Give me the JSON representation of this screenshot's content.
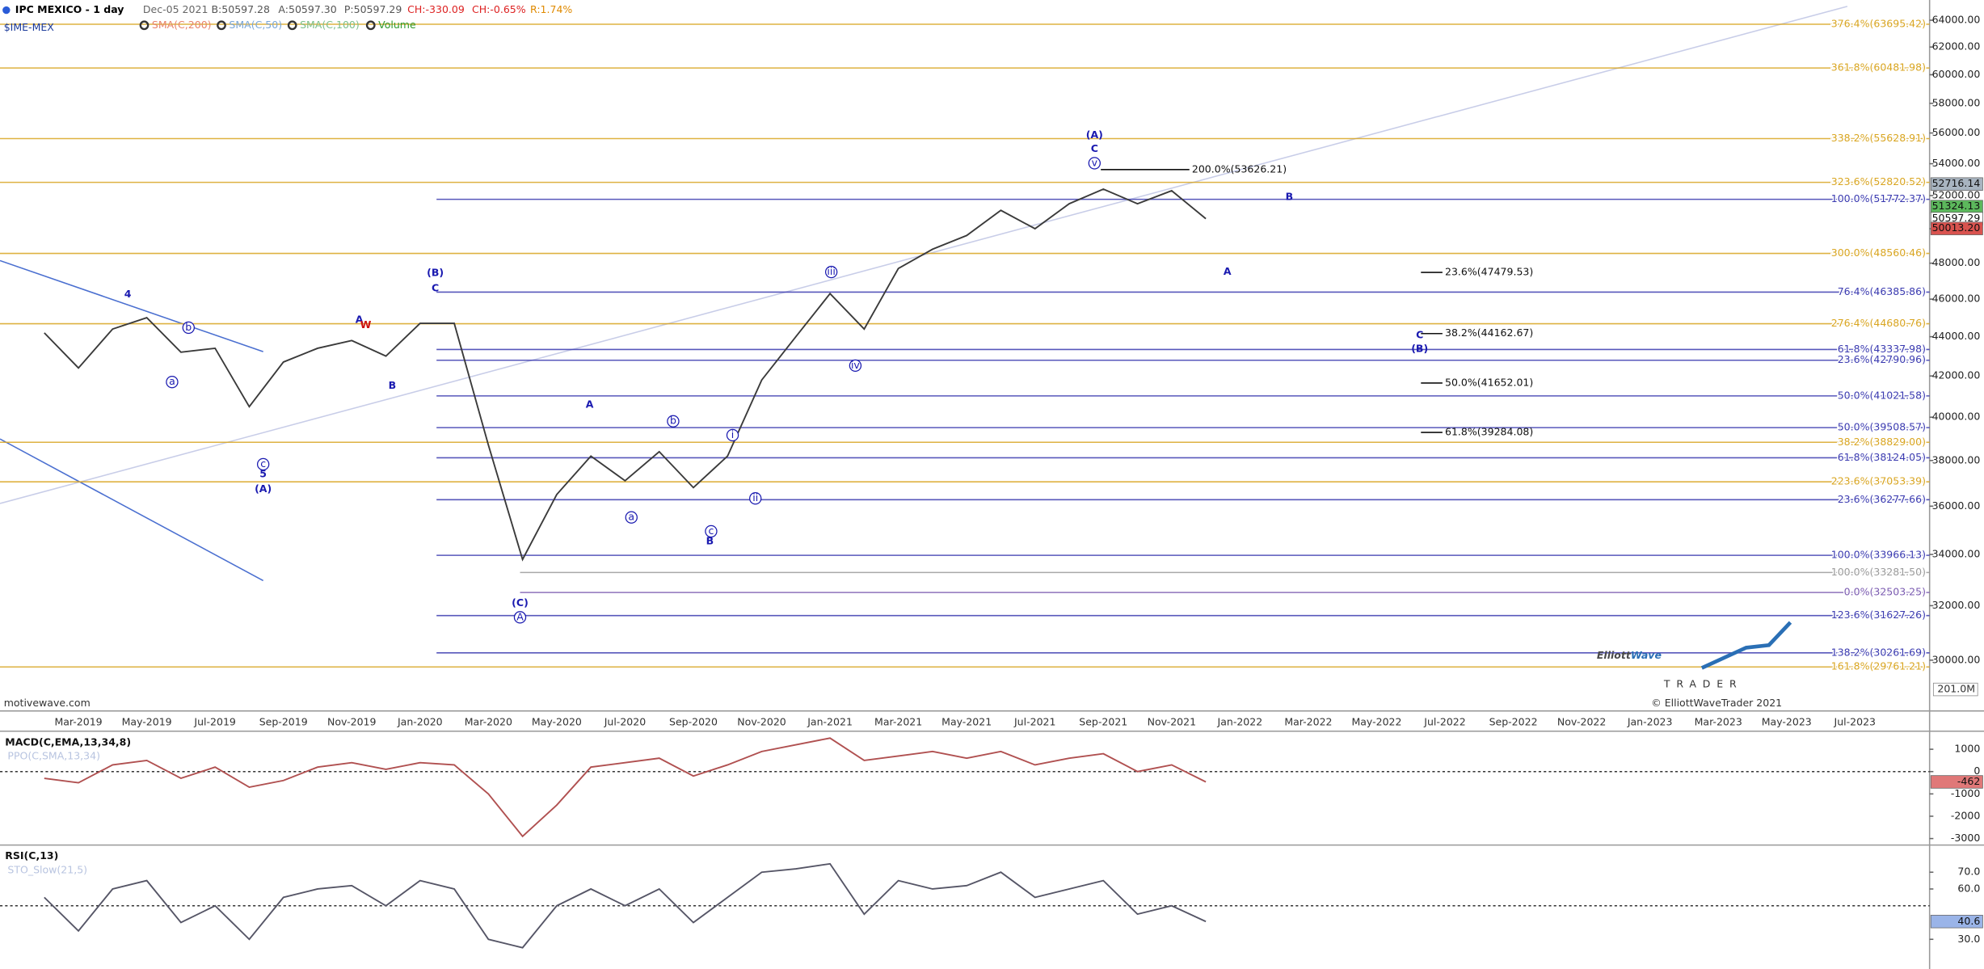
{
  "header": {
    "title": "IPC MEXICO - 1 day",
    "date": "Dec-05 2021",
    "bid": "B:50597.28",
    "ask": "A:50597.30",
    "price": "P:50597.29",
    "change": "CH:-330.09",
    "change_pct": "CH:-0.65%",
    "range": "R:1.74%",
    "ticker": "$IME-MEX",
    "indicators": [
      {
        "name": "SMA(C,200)",
        "color": "#e8836b"
      },
      {
        "name": "SMA(C,50)",
        "color": "#7aa7d8"
      },
      {
        "name": "SMA(C,100)",
        "color": "#7cc08a"
      },
      {
        "name": "Volume",
        "color": "#2e9a2e"
      }
    ]
  },
  "chart_data": [
    {
      "type": "line",
      "categories": [
        null,
        "Mar-2019",
        null,
        "May-2019",
        null,
        "Jul-2019",
        null,
        "Sep-2019",
        null,
        "Nov-2019",
        null,
        "Jan-2020",
        null,
        "Mar-2020",
        null,
        "May-2020",
        null,
        "Jul-2020",
        null,
        "Sep-2020",
        null,
        "Nov-2020",
        null,
        "Jan-2021",
        null,
        "Mar-2021",
        null,
        "May-2021",
        null,
        "Jul-2021",
        null,
        "Sep-2021",
        null,
        "Nov-2021",
        null,
        "Jan-2022",
        null,
        "Mar-2022",
        null,
        "May-2022",
        null,
        "Jul-2022",
        null,
        "Sep-2022",
        null,
        "Nov-2022",
        null,
        "Jan-2023",
        null,
        "Mar-2023",
        null,
        "May-2023",
        null,
        "Jul-2023",
        null
      ],
      "values": [
        44200,
        42400,
        44400,
        45000,
        43200,
        43400,
        40500,
        42700,
        43400,
        43800,
        43000,
        44700,
        44700,
        38700,
        33800,
        36500,
        38200,
        37100,
        38400,
        36800,
        38200,
        41800,
        44000,
        46300,
        44400,
        47700,
        48800,
        49600,
        51100,
        50000,
        51500,
        52400,
        51500,
        52300,
        50597,
        null,
        null,
        null,
        null,
        null,
        null,
        null,
        null,
        null,
        null,
        null,
        null,
        null,
        null,
        null,
        null,
        null,
        null,
        null,
        null
      ],
      "color": "#3a3a3a",
      "log_scale": true,
      "ylim": [
        28250,
        65550
      ],
      "yticks": [
        {
          "value": 30000,
          "label": "30000.00"
        },
        {
          "value": 32000,
          "label": "32000.00"
        },
        {
          "value": 34000,
          "label": "34000.00"
        },
        {
          "value": 36000,
          "label": "36000.00"
        },
        {
          "value": 38000,
          "label": "38000.00"
        },
        {
          "value": 40000,
          "label": "40000.00"
        },
        {
          "value": 42000,
          "label": "42000.00"
        },
        {
          "value": 44000,
          "label": "44000.00"
        },
        {
          "value": 46000,
          "label": "46000.00"
        },
        {
          "value": 48000,
          "label": "48000.00"
        },
        {
          "value": 50000,
          "label": "50000.00"
        },
        {
          "value": 52000,
          "label": "52000.00"
        },
        {
          "value": 54000,
          "label": "54000.00"
        },
        {
          "value": 56000,
          "label": "56000.00"
        },
        {
          "value": 58000,
          "label": "58000.00"
        },
        {
          "value": 60000,
          "label": "60000.00"
        },
        {
          "value": 62000,
          "label": "62000.00"
        },
        {
          "value": 64000,
          "label": "64000.00"
        }
      ],
      "levels": [
        {
          "label": "376.4%(63695.42)",
          "value": 63695.42,
          "color": "#d9a520"
        },
        {
          "label": "361.8%(60481.98)",
          "value": 60481.98,
          "color": "#d9a520"
        },
        {
          "label": "338.2%(55628.91)",
          "value": 55628.91,
          "color": "#d9a520"
        },
        {
          "label": "323.6%(52820.52)",
          "value": 52820.52,
          "color": "#d9a520"
        },
        {
          "label": "100.0%(51772.37)",
          "value": 51772.37,
          "color": "#3a3ab0"
        },
        {
          "label": "300.0%(48560.46)",
          "value": 48560.46,
          "color": "#d9a520"
        },
        {
          "label": "76.4%(46385.86)",
          "value": 46385.86,
          "color": "#3a3ab0"
        },
        {
          "label": "276.4%(44680.76)",
          "value": 44680.76,
          "color": "#d9a520"
        },
        {
          "label": "61.8%(43337.98)",
          "value": 43337.98,
          "color": "#3a3ab0"
        },
        {
          "label": "23.6%(42790.96)",
          "value": 42790.96,
          "color": "#3a3ab0"
        },
        {
          "label": "50.0%(41021.58)",
          "value": 41021.58,
          "color": "#3a3ab0"
        },
        {
          "label": "50.0%(39508.57)",
          "value": 39508.57,
          "color": "#3a3ab0"
        },
        {
          "label": "38.2%(38829.00)",
          "value": 38829,
          "color": "#d9a520"
        },
        {
          "label": "61.8%(38124.05)",
          "value": 38124.05,
          "color": "#3a3ab0"
        },
        {
          "label": "223.6%(37053.39)",
          "value": 37053.39,
          "color": "#d9a520"
        },
        {
          "label": "23.6%(36277.66)",
          "value": 36277.66,
          "color": "#3a3ab0"
        },
        {
          "label": "100.0%(33966.13)",
          "value": 33966.13,
          "color": "#3a3ab0"
        },
        {
          "label": "100.0%(33281.50)",
          "value": 33281.5,
          "color": "#9a9a9a"
        },
        {
          "label": "0.0%(32503.25)",
          "value": 32503.25,
          "color": "#7a5ab0"
        },
        {
          "label": "123.6%(31627.26)",
          "value": 31627.26,
          "color": "#3a3ab0"
        },
        {
          "label": "138.2%(30261.69)",
          "value": 30261.69,
          "color": "#3a3ab0"
        },
        {
          "label": "161.8%(29761.21)",
          "value": 29761.21,
          "color": "#d9a520"
        }
      ],
      "projections": [
        {
          "label": "200.0%(53626.21)",
          "value": 53626.21
        },
        {
          "label": "23.6%(47479.53)",
          "value": 47479.53
        },
        {
          "label": "38.2%(44162.67)",
          "value": 44162.67
        },
        {
          "label": "50.0%(41652.01)",
          "value": 41652.01
        },
        {
          "label": "61.8%(39284.08)",
          "value": 39284.08
        }
      ],
      "waves": [
        {
          "text": "(A)",
          "color": "#1a1ab0"
        },
        {
          "text": "C",
          "color": "#1a1ab0"
        },
        {
          "text": "v",
          "color": "#1a1ab0"
        },
        {
          "text": "B",
          "color": "#1a1ab0"
        },
        {
          "text": "A",
          "color": "#1a1ab0"
        },
        {
          "text": "C",
          "color": "#1a1ab0"
        },
        {
          "text": "(B)",
          "color": "#1a1ab0"
        },
        {
          "text": "iii",
          "color": "#1a1ab0"
        },
        {
          "text": "iv",
          "color": "#1a1ab0"
        },
        {
          "text": "i",
          "color": "#1a1ab0"
        },
        {
          "text": "ii",
          "color": "#1a1ab0"
        },
        {
          "text": "A",
          "color": "#1a1ab0"
        },
        {
          "text": "b",
          "color": "#1a1ab0"
        },
        {
          "text": "a",
          "color": "#1a1ab0"
        },
        {
          "text": "c",
          "color": "#1a1ab0"
        },
        {
          "text": "B",
          "color": "#1a1ab0"
        },
        {
          "text": "(C)",
          "color": "#1a1ab0"
        },
        {
          "text": "A",
          "color": "#1a1ab0"
        },
        {
          "text": "(B)",
          "color": "#1a1ab0"
        },
        {
          "text": "C",
          "color": "#1a1ab0"
        },
        {
          "text": "A",
          "color": "#1a1ab0"
        },
        {
          "text": "W",
          "color": "#cc1111"
        },
        {
          "text": "B",
          "color": "#1a1ab0"
        },
        {
          "text": "4",
          "color": "#1a1ab0"
        },
        {
          "text": "b",
          "color": "#1a1ab0"
        },
        {
          "text": "a",
          "color": "#1a1ab0"
        },
        {
          "text": "c",
          "color": "#1a1ab0"
        },
        {
          "text": "5",
          "color": "#1a1ab0"
        },
        {
          "text": "(A)",
          "color": "#1a1ab0"
        }
      ],
      "price_labels": [
        {
          "value": 52716.14,
          "color": "#a8b4c0"
        },
        {
          "value": 51324.13,
          "color": "#5cb85c"
        },
        {
          "value": 50597.29,
          "color": "#ffffff"
        },
        {
          "value": 50013.2,
          "label": "50013.20",
          "color": "#d9534f"
        }
      ],
      "volume_label": "201.0M"
    },
    {
      "type": "line",
      "title": "MACD(C,EMA,13,34,8)",
      "subtitle": "PPO(C,SMA,13,34)",
      "values": [
        -300,
        -500,
        300,
        500,
        -300,
        200,
        -700,
        -400,
        200,
        400,
        100,
        400,
        300,
        -1000,
        -2900,
        -1500,
        200,
        400,
        600,
        -200,
        300,
        900,
        1200,
        1500,
        500,
        700,
        900,
        600,
        900,
        300,
        600,
        800,
        0,
        300,
        -462,
        null,
        null,
        null,
        null,
        null,
        null,
        null,
        null,
        null,
        null,
        null,
        null,
        null,
        null,
        null,
        null,
        null,
        null,
        null,
        null
      ],
      "color": "#b05050",
      "ylim": [
        -3290,
        1810
      ],
      "yticks": [
        1000,
        0,
        -1000,
        -2000,
        -3000
      ],
      "midline": 0
    },
    {
      "type": "line",
      "title": "RSI(C,13)",
      "subtitle": "STO_Slow(21,5)",
      "values": [
        55,
        35,
        60,
        65,
        40,
        50,
        30,
        55,
        60,
        62,
        50,
        65,
        60,
        30,
        25,
        50,
        60,
        50,
        60,
        40,
        55,
        70,
        72,
        75,
        45,
        65,
        60,
        62,
        70,
        55,
        60,
        65,
        45,
        50,
        40.6,
        null,
        null,
        null,
        null,
        null,
        null,
        null,
        null,
        null,
        null,
        null,
        null,
        null,
        null,
        null,
        null,
        null,
        null,
        null,
        null
      ],
      "color": "#555566",
      "ylim": [
        12.3,
        86.2
      ],
      "yticks": [
        {
          "value": 70,
          "label": "70.0"
        },
        {
          "value": 60,
          "label": "60.0"
        },
        {
          "value": 30,
          "label": "30.0"
        }
      ],
      "midline": 50
    }
  ],
  "footer": {
    "source": "motivewave.com"
  },
  "logo": {
    "word1": "Elliott",
    "word2": "Wave",
    "tagline": "TRADER",
    "copyright": "© ElliottWaveTrader 2021"
  }
}
